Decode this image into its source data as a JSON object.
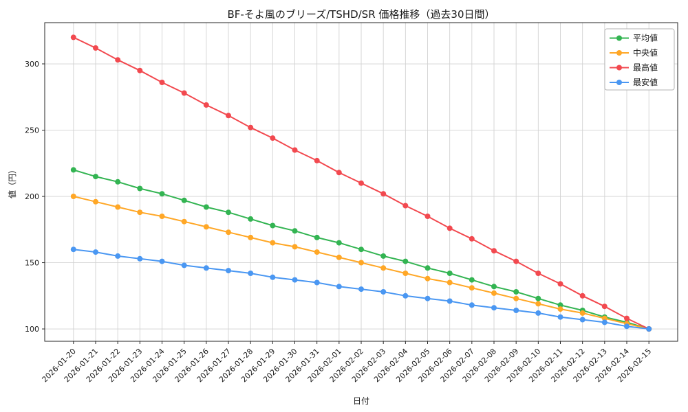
{
  "chart_data": {
    "type": "line",
    "title": "BF-そよ風のブリーズ/TSHD/SR 価格推移（過去30日間）",
    "xlabel": "日付",
    "ylabel": "値（円）",
    "grid": true,
    "legend_position": "upper-right",
    "background": "#ffffff",
    "yticks": [
      100,
      150,
      200,
      250,
      300
    ],
    "ylim": [
      90.7,
      331.1
    ],
    "categories": [
      "2026-01-20",
      "2026-01-21",
      "2026-01-22",
      "2026-01-23",
      "2026-01-24",
      "2026-01-25",
      "2026-01-26",
      "2026-01-27",
      "2026-01-28",
      "2026-01-29",
      "2026-01-30",
      "2026-01-31",
      "2026-02-01",
      "2026-02-02",
      "2026-02-03",
      "2026-02-04",
      "2026-02-05",
      "2026-02-06",
      "2026-02-07",
      "2026-02-08",
      "2026-02-09",
      "2026-02-10",
      "2026-02-11",
      "2026-02-12",
      "2026-02-13",
      "2026-02-14",
      "2026-02-15"
    ],
    "series": [
      {
        "key": "average",
        "name": "平均値",
        "color": "#33b452",
        "values": [
          220,
          215,
          211,
          206,
          202,
          197,
          192,
          188,
          183,
          178,
          174,
          169,
          165,
          160,
          155,
          151,
          146,
          142,
          137,
          132,
          128,
          123,
          118,
          114,
          109,
          105,
          100
        ]
      },
      {
        "key": "median",
        "name": "中央値",
        "color": "#ffa726",
        "values": [
          200,
          196,
          192,
          188,
          185,
          181,
          177,
          173,
          169,
          165,
          162,
          158,
          154,
          150,
          146,
          142,
          138,
          135,
          131,
          127,
          123,
          119,
          115,
          112,
          108,
          104,
          100
        ]
      },
      {
        "key": "max",
        "name": "最高値",
        "color": "#f2494f",
        "values": [
          320,
          312,
          303,
          295,
          286,
          278,
          269,
          261,
          252,
          244,
          235,
          227,
          218,
          210,
          202,
          193,
          185,
          176,
          168,
          159,
          151,
          142,
          134,
          125,
          117,
          108,
          100
        ]
      },
      {
        "key": "min",
        "name": "最安値",
        "color": "#4a97f2",
        "values": [
          160,
          158,
          155,
          153,
          151,
          148,
          146,
          144,
          142,
          139,
          137,
          135,
          132,
          130,
          128,
          125,
          123,
          121,
          118,
          116,
          114,
          112,
          109,
          107,
          105,
          102,
          100
        ]
      }
    ]
  }
}
